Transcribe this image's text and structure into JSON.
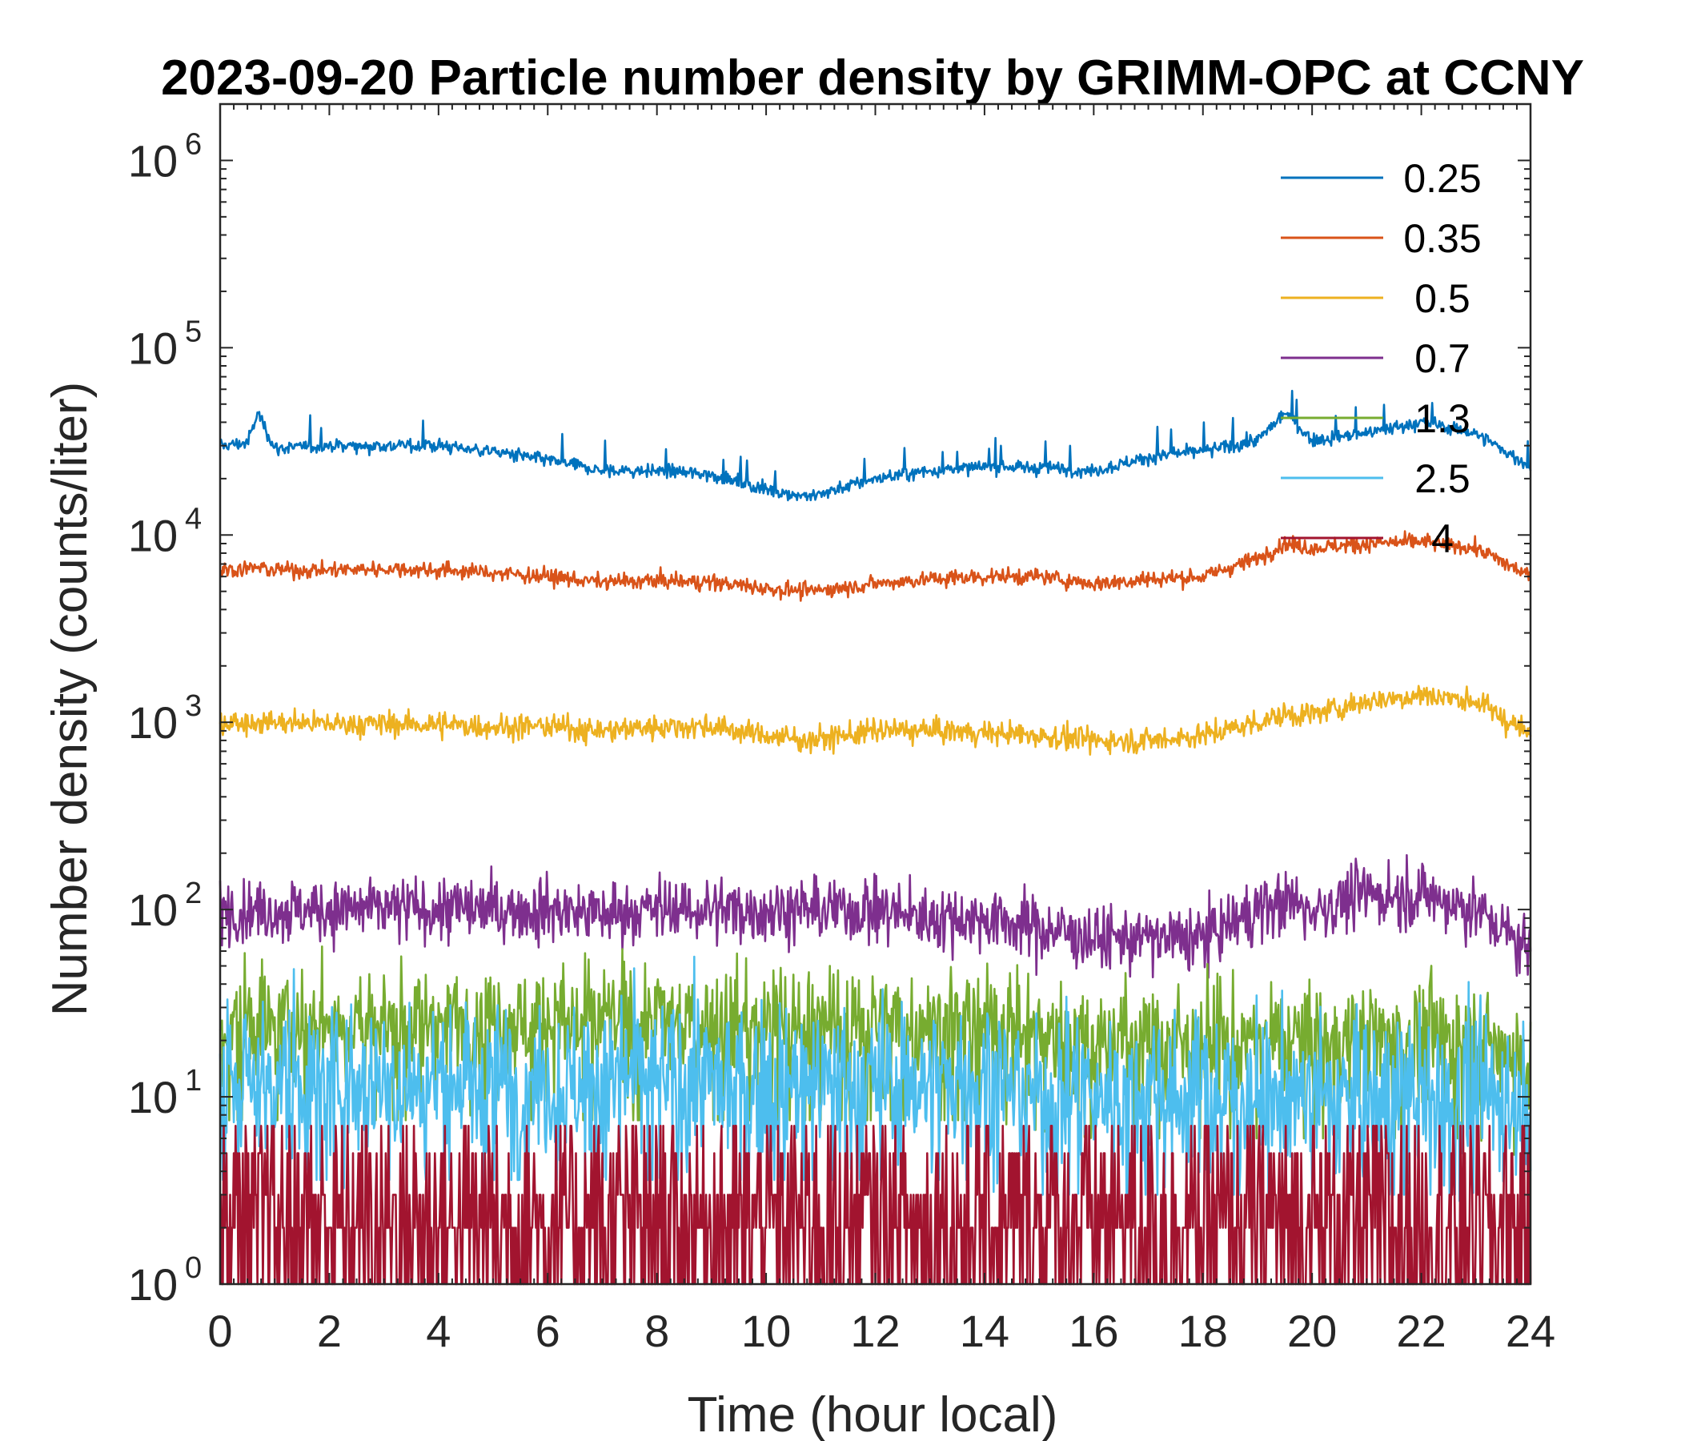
{
  "chart_data": {
    "type": "line",
    "title": "2023-09-20 Particle number density by GRIMM-OPC at CCNY",
    "xlabel": "Time (hour local)",
    "ylabel": "Number density (counts/liter)",
    "xlim": [
      0,
      24
    ],
    "ylim": [
      1,
      2000000
    ],
    "yscale": "log",
    "grid": false,
    "legend_position": "top-right",
    "xticks": [
      0,
      2,
      4,
      6,
      8,
      10,
      12,
      14,
      16,
      18,
      20,
      22,
      24
    ],
    "xtick_labels": [
      "0",
      "2",
      "4",
      "6",
      "8",
      "10",
      "12",
      "14",
      "16",
      "18",
      "20",
      "22",
      "24"
    ],
    "yticks": [
      1,
      10,
      100,
      1000,
      10000,
      100000,
      1000000
    ],
    "ytick_labels": [
      {
        "base": "10",
        "exp": "0"
      },
      {
        "base": "10",
        "exp": "1"
      },
      {
        "base": "10",
        "exp": "2"
      },
      {
        "base": "10",
        "exp": "3"
      },
      {
        "base": "10",
        "exp": "4"
      },
      {
        "base": "10",
        "exp": "5"
      },
      {
        "base": "10",
        "exp": "6"
      }
    ],
    "x": [
      0,
      0.5,
      0.7,
      1,
      2,
      3,
      4,
      5,
      6,
      7,
      8,
      9,
      10,
      10.8,
      12,
      13,
      14,
      15,
      16,
      17,
      18,
      19,
      19.5,
      20,
      21,
      22,
      23,
      24
    ],
    "series": [
      {
        "name": "0.25",
        "color": "#0072BD",
        "values": [
          30000,
          31000,
          45000,
          29000,
          30000,
          30000,
          30000,
          28000,
          25000,
          22000,
          22000,
          21000,
          17500,
          16000,
          20000,
          22000,
          23000,
          23000,
          22000,
          26000,
          28000,
          32000,
          45000,
          32000,
          35000,
          40000,
          35000,
          23000
        ]
      },
      {
        "name": "0.35",
        "color": "#D95319",
        "values": [
          6500,
          6600,
          6700,
          6500,
          6500,
          6600,
          6500,
          6300,
          6000,
          5600,
          5700,
          5600,
          5200,
          5000,
          5500,
          5800,
          6000,
          6000,
          5500,
          5800,
          6000,
          7500,
          9000,
          8500,
          9000,
          9200,
          8500,
          6000
        ]
      },
      {
        "name": "0.5",
        "color": "#EDB120",
        "values": [
          1000,
          1000,
          1000,
          1000,
          980,
          980,
          970,
          950,
          950,
          900,
          950,
          950,
          850,
          800,
          900,
          900,
          880,
          850,
          800,
          800,
          850,
          1000,
          1100,
          1100,
          1300,
          1400,
          1300,
          850
        ]
      },
      {
        "name": "0.7",
        "color": "#7E2F8E",
        "values": [
          100,
          100,
          100,
          100,
          100,
          100,
          100,
          100,
          100,
          95,
          100,
          100,
          100,
          100,
          100,
          90,
          90,
          80,
          70,
          70,
          70,
          100,
          110,
          100,
          120,
          120,
          100,
          60
        ]
      },
      {
        "name": "1.3",
        "color": "#77AC30",
        "values": [
          25,
          25,
          25,
          25,
          25,
          25,
          25,
          25,
          25,
          25,
          25,
          25,
          25,
          25,
          25,
          25,
          25,
          22,
          20,
          20,
          20,
          20,
          20,
          20,
          20,
          20,
          20,
          15
        ]
      },
      {
        "name": "2.5",
        "color": "#4DBEEE",
        "values": [
          12,
          12,
          12,
          12,
          12,
          12,
          12,
          12,
          12,
          12,
          12,
          12,
          12,
          12,
          12,
          12,
          12,
          10,
          10,
          10,
          10,
          10,
          10,
          10,
          10,
          10,
          10,
          10
        ]
      },
      {
        "name": "4",
        "color": "#A2142F",
        "values": [
          2.5,
          2.5,
          2.5,
          2.5,
          2.5,
          2.5,
          2.5,
          2.5,
          2.5,
          2.5,
          2.5,
          2.5,
          2.5,
          2.5,
          2.5,
          2.5,
          2.5,
          2.5,
          2.5,
          2.5,
          2.5,
          2.5,
          2.5,
          2.5,
          2.5,
          2.5,
          2.5,
          2.5
        ]
      }
    ]
  }
}
